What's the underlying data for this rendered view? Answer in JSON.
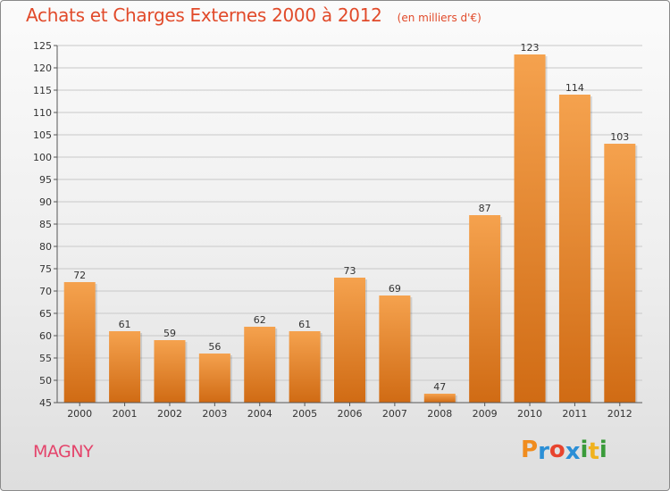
{
  "header": {
    "title": "Achats et Charges Externes 2000 à 2012",
    "unit": "(en milliers d'€)"
  },
  "footer": {
    "commune": "MAGNY",
    "brand_letters": [
      "P",
      "r",
      "o",
      "x",
      "i",
      "t",
      "i"
    ],
    "brand_colors": [
      "#f08c1e",
      "#2b8fd6",
      "#e8442e",
      "#2b8fd6",
      "#3a9b3a",
      "#f0b21e",
      "#3a9b3a"
    ]
  },
  "chart_data": {
    "type": "bar",
    "title": "Achats et Charges Externes 2000 à 2012",
    "subtitle": "(en milliers d'€)",
    "categories": [
      "2000",
      "2001",
      "2002",
      "2003",
      "2004",
      "2005",
      "2006",
      "2007",
      "2008",
      "2009",
      "2010",
      "2011",
      "2012"
    ],
    "values": [
      72,
      61,
      59,
      56,
      62,
      61,
      73,
      69,
      47,
      87,
      123,
      114,
      103
    ],
    "ylim": [
      45,
      125
    ],
    "yticks": [
      45,
      50,
      55,
      60,
      65,
      70,
      75,
      80,
      85,
      90,
      95,
      100,
      105,
      110,
      115,
      120,
      125
    ],
    "grid": true,
    "bar_color_top": "#f5a24e",
    "bar_color_bottom": "#d06b14"
  }
}
